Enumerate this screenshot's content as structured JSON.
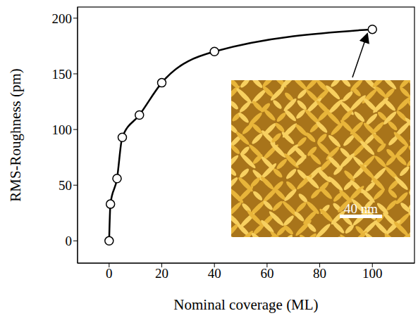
{
  "chart_data": {
    "type": "line",
    "x": [
      0,
      0.5,
      3,
      5,
      11.5,
      20,
      40,
      100
    ],
    "values": [
      0,
      33,
      56,
      93,
      113,
      142,
      170,
      190
    ],
    "color": "#000000",
    "marker": "open_circle",
    "line_style": "solid",
    "xlim": [
      -12,
      116
    ],
    "ylim": [
      -20,
      210
    ],
    "xticks": [
      0,
      20,
      40,
      60,
      80,
      100
    ],
    "yticks": [
      0,
      50,
      100,
      150,
      200
    ],
    "x_label": "Nominal coverage (ML)",
    "y_label": "RMS-Roughness (pm)",
    "grid": false,
    "annotations": [
      "40 nm"
    ]
  }
}
